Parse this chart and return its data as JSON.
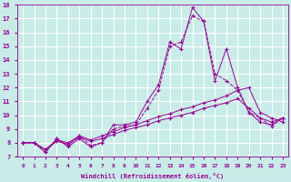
{
  "xlabel": "Windchill (Refroidissement éolien,°C)",
  "xlim": [
    -0.5,
    23.5
  ],
  "ylim": [
    7,
    18
  ],
  "yticks": [
    7,
    8,
    9,
    10,
    11,
    12,
    13,
    14,
    15,
    16,
    17,
    18
  ],
  "xticks": [
    0,
    1,
    2,
    3,
    4,
    5,
    6,
    7,
    8,
    9,
    10,
    11,
    12,
    13,
    14,
    15,
    16,
    17,
    18,
    19,
    20,
    21,
    22,
    23
  ],
  "background_color": "#c8ece8",
  "grid_color": "#ffffff",
  "line_color": "#990099",
  "lines": [
    {
      "x": [
        0,
        1,
        2,
        3,
        4,
        5,
        6,
        7,
        8,
        9,
        10,
        11,
        12,
        13,
        14,
        15,
        16,
        17,
        18,
        19,
        20,
        21,
        22,
        23
      ],
      "y": [
        8.0,
        8.0,
        7.3,
        8.3,
        7.7,
        8.3,
        7.7,
        8.0,
        9.3,
        9.3,
        9.5,
        11.0,
        12.2,
        15.3,
        14.8,
        17.8,
        16.8,
        12.5,
        14.8,
        12.0,
        10.2,
        9.5,
        9.3,
        9.8
      ],
      "linestyle": "-"
    },
    {
      "x": [
        0,
        1,
        2,
        3,
        4,
        5,
        6,
        7,
        8,
        9,
        10,
        11,
        12,
        13,
        14,
        15,
        16,
        17,
        18,
        19,
        20,
        21,
        22,
        23
      ],
      "y": [
        8.0,
        8.0,
        7.3,
        8.3,
        7.8,
        8.5,
        7.8,
        8.0,
        9.0,
        9.2,
        9.3,
        10.5,
        11.8,
        15.0,
        15.3,
        17.2,
        16.8,
        13.0,
        12.5,
        11.8,
        10.2,
        9.8,
        9.2,
        9.8
      ],
      "linestyle": "--"
    },
    {
      "x": [
        0,
        1,
        2,
        3,
        4,
        5,
        6,
        7,
        8,
        9,
        10,
        11,
        12,
        13,
        14,
        15,
        16,
        17,
        18,
        19,
        20,
        21,
        22,
        23
      ],
      "y": [
        8.0,
        8.0,
        7.5,
        8.2,
        8.0,
        8.5,
        8.2,
        8.5,
        8.8,
        9.1,
        9.3,
        9.6,
        9.9,
        10.1,
        10.4,
        10.6,
        10.9,
        11.1,
        11.4,
        11.8,
        12.0,
        10.2,
        9.8,
        9.5
      ],
      "linestyle": "-"
    },
    {
      "x": [
        0,
        1,
        2,
        3,
        4,
        5,
        6,
        7,
        8,
        9,
        10,
        11,
        12,
        13,
        14,
        15,
        16,
        17,
        18,
        19,
        20,
        21,
        22,
        23
      ],
      "y": [
        8.0,
        8.0,
        7.5,
        8.1,
        7.9,
        8.4,
        8.1,
        8.3,
        8.6,
        8.9,
        9.1,
        9.3,
        9.6,
        9.8,
        10.0,
        10.2,
        10.5,
        10.7,
        10.9,
        11.2,
        10.5,
        9.8,
        9.5,
        9.8
      ],
      "linestyle": "-"
    }
  ]
}
